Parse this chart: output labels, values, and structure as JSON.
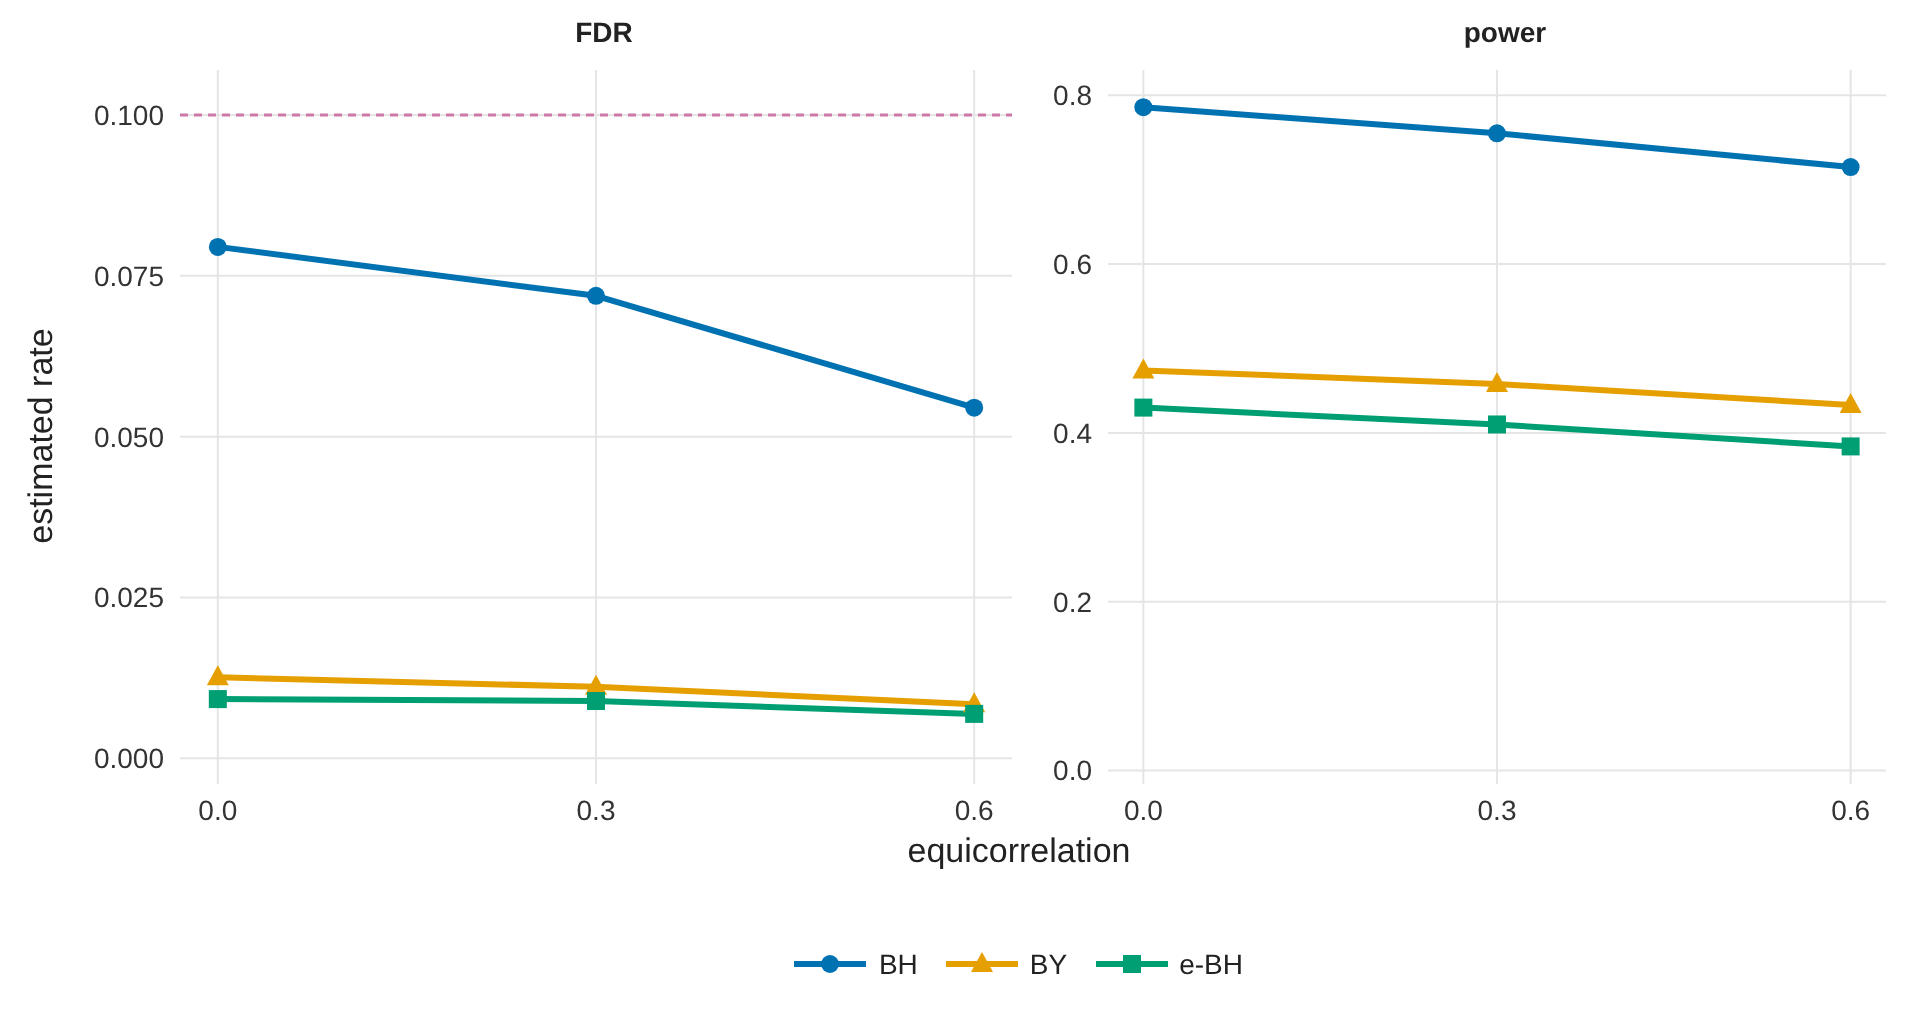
{
  "chart_data": [
    {
      "type": "line",
      "title": "FDR",
      "ylabel": "estimated rate",
      "xlabel": "equicorrelation",
      "x": [
        0,
        0.3,
        0.6
      ],
      "xlim": [
        -0.03,
        0.63
      ],
      "xticks": [
        {
          "value": 0,
          "label": "0.0"
        },
        {
          "value": 0.3,
          "label": "0.3"
        },
        {
          "value": 0.6,
          "label": "0.6"
        }
      ],
      "ylim": [
        -0.004,
        0.107
      ],
      "yticks": [
        {
          "value": 0,
          "label": "0.000"
        },
        {
          "value": 0.025,
          "label": "0.025"
        },
        {
          "value": 0.05,
          "label": "0.050"
        },
        {
          "value": 0.075,
          "label": "0.075"
        },
        {
          "value": 0.1,
          "label": "0.100"
        }
      ],
      "grid": true,
      "legend": "bottom",
      "ref_lines": [
        {
          "axis": "y",
          "value": 0.1,
          "color": "#cc79a7",
          "line_style": "dashed"
        }
      ],
      "series": [
        {
          "name": "BH",
          "color": "#0072b2",
          "marker": "circle",
          "values": [
            0.0795,
            0.0719,
            0.0545
          ]
        },
        {
          "name": "BY",
          "color": "#e69f00",
          "marker": "triangle",
          "values": [
            0.0126,
            0.0111,
            0.0084
          ]
        },
        {
          "name": "e-BH",
          "color": "#009e73",
          "marker": "square",
          "values": [
            0.0092,
            0.0089,
            0.0069
          ]
        }
      ]
    },
    {
      "type": "line",
      "title": "power",
      "x": [
        0,
        0.3,
        0.6
      ],
      "xlim": [
        -0.03,
        0.63
      ],
      "xticks": [
        {
          "value": 0,
          "label": "0.0"
        },
        {
          "value": 0.3,
          "label": "0.3"
        },
        {
          "value": 0.6,
          "label": "0.6"
        }
      ],
      "ylim": [
        -0.016,
        0.83
      ],
      "yticks": [
        {
          "value": 0,
          "label": "0.0"
        },
        {
          "value": 0.2,
          "label": "0.2"
        },
        {
          "value": 0.4,
          "label": "0.4"
        },
        {
          "value": 0.6,
          "label": "0.6"
        },
        {
          "value": 0.8,
          "label": "0.8"
        }
      ],
      "grid": true,
      "series": [
        {
          "color": "#0072b2",
          "marker": "circle",
          "values": [
            0.786,
            0.755,
            0.715
          ]
        },
        {
          "color": "#e69f00",
          "marker": "triangle",
          "values": [
            0.474,
            0.458,
            0.433
          ]
        },
        {
          "color": "#009e73",
          "marker": "square",
          "values": [
            0.43,
            0.41,
            0.384
          ]
        }
      ]
    }
  ]
}
